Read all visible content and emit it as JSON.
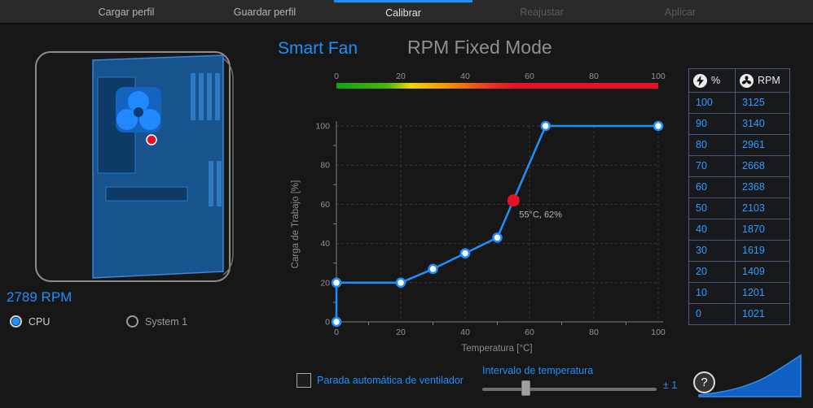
{
  "colors": {
    "accent": "#1e8fff",
    "red": "#e81123"
  },
  "toolbar": {
    "tabs": [
      {
        "label": "Cargar perfil"
      },
      {
        "label": "Guardar perfil"
      },
      {
        "label": "Calibrar"
      },
      {
        "label": "Reajustar"
      },
      {
        "label": "Aplicar"
      }
    ],
    "active_tab": "Calibrar"
  },
  "left_panel": {
    "rpm": "2789 RPM",
    "fans": [
      {
        "label": "CPU",
        "selected": true
      },
      {
        "label": "System 1",
        "selected": false
      }
    ]
  },
  "chart": {
    "title": "Smart Fan",
    "mode": "RPM Fixed Mode",
    "xlabel": "Temperatura [°C]",
    "ylabel": "Carga de Trabajo [%]",
    "axis_ticks": [
      0,
      20,
      40,
      60,
      80,
      100
    ],
    "points": [
      [
        0,
        0
      ],
      [
        0,
        20
      ],
      [
        20,
        20
      ],
      [
        30,
        27
      ],
      [
        40,
        35
      ],
      [
        50,
        43
      ],
      [
        55,
        62
      ],
      [
        65,
        100
      ],
      [
        100,
        100
      ]
    ],
    "highlight": {
      "temp": 55,
      "load": 62,
      "label": "55°C, 62%"
    }
  },
  "chart_data": {
    "type": "line",
    "title": "Smart Fan RPM Fixed Mode",
    "xlabel": "Temperatura [°C]",
    "ylabel": "Carga de Trabajo [%]",
    "xlim": [
      0,
      100
    ],
    "ylim": [
      0,
      100
    ],
    "x": [
      0,
      0,
      20,
      30,
      40,
      50,
      55,
      65,
      100
    ],
    "y": [
      0,
      20,
      20,
      27,
      35,
      43,
      62,
      100,
      100
    ],
    "annotation": "55°C, 62%",
    "legend": []
  },
  "table": {
    "col1_header": "%",
    "col2_header": "RPM",
    "rows": [
      {
        "pct": "100",
        "rpm": "3125"
      },
      {
        "pct": "90",
        "rpm": "3140"
      },
      {
        "pct": "80",
        "rpm": "2961"
      },
      {
        "pct": "70",
        "rpm": "2668"
      },
      {
        "pct": "60",
        "rpm": "2368"
      },
      {
        "pct": "50",
        "rpm": "2103"
      },
      {
        "pct": "40",
        "rpm": "1870"
      },
      {
        "pct": "30",
        "rpm": "1619"
      },
      {
        "pct": "20",
        "rpm": "1409"
      },
      {
        "pct": "10",
        "rpm": "1201"
      },
      {
        "pct": "0",
        "rpm": "1021"
      }
    ]
  },
  "footer": {
    "checkbox_label": "Parada automática de ventilador",
    "slider_label": "Intervalo de temperatura",
    "slider_value": "± 1"
  },
  "help_label": "?"
}
